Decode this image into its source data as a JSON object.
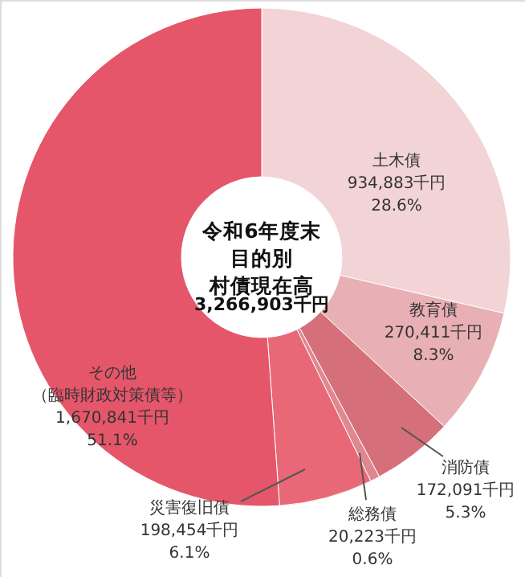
{
  "chart_data": {
    "type": "donut",
    "title": "令和6年度末目的別村債現在高",
    "annotations": [
      "3,266,903千円"
    ],
    "categories": [
      "土木債",
      "教育債",
      "消防債",
      "総務債",
      "災害復旧債",
      "その他（臨時財政対策債等）"
    ],
    "values": [
      934883,
      270411,
      172091,
      20223,
      198454,
      1670841
    ],
    "value_labels": [
      "934,883千円\n28.6%",
      "270,411千円\n8.3%",
      "172,091千円\n5.3%",
      "20,223千円\n0.6%",
      "198,454千円\n6.1%",
      "1,670,841千円\n51.1%"
    ],
    "colors": [
      "#f2d4d6",
      "#e8b0b4",
      "#d5707a",
      "#e08890",
      "#e86878",
      "#e5566a"
    ]
  }
}
